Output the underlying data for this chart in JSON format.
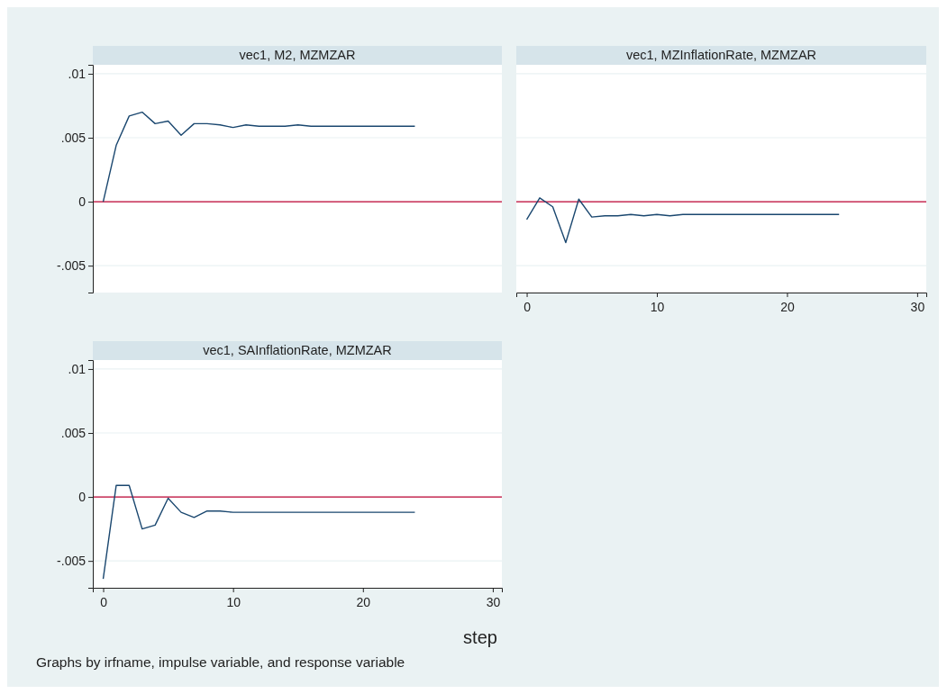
{
  "chart_data": [
    {
      "type": "line",
      "title": "vec1, M2, MZMZAR",
      "x": [
        0,
        1,
        2,
        3,
        4,
        5,
        6,
        7,
        8,
        9,
        10,
        11,
        12,
        13,
        14,
        15,
        16,
        17,
        18,
        19,
        20,
        21,
        22,
        23,
        24
      ],
      "series": [
        {
          "color": "#1a476f",
          "values": [
            0,
            0.0044,
            0.0067,
            0.007,
            0.0061,
            0.0063,
            0.0052,
            0.0061,
            0.0061,
            0.006,
            0.0058,
            0.006,
            0.0059,
            0.0059,
            0.0059,
            0.006,
            0.0059,
            0.0059,
            0.0059,
            0.0059,
            0.0059,
            0.0059,
            0.0059,
            0.0059,
            0.0059
          ]
        }
      ],
      "xlim": [
        -0.8,
        30.7
      ],
      "ylim": [
        -0.0071,
        0.0107
      ],
      "yticks": [
        {
          "value": -0.005,
          "label": "-.005"
        },
        0,
        {
          "value": 0.005,
          "label": ".005"
        },
        {
          "value": 0.01,
          "label": ".01"
        }
      ],
      "ref_lines": [
        {
          "axis": "y",
          "value": 0,
          "color": "#c10534"
        }
      ],
      "grid": "y",
      "tick_labels": "y"
    },
    {
      "type": "line",
      "title": "vec1, MZInflationRate, MZMZAR",
      "x": [
        0,
        1,
        2,
        3,
        4,
        5,
        6,
        7,
        8,
        9,
        10,
        11,
        12,
        13,
        14,
        15,
        16,
        17,
        18,
        19,
        20,
        21,
        22,
        23,
        24
      ],
      "series": [
        {
          "color": "#1a476f",
          "values": [
            -0.0014,
            0.0003,
            -0.0004,
            -0.0032,
            0.0002,
            -0.0012,
            -0.0011,
            -0.0011,
            -0.001,
            -0.0011,
            -0.001,
            -0.0011,
            -0.001,
            -0.001,
            -0.001,
            -0.001,
            -0.001,
            -0.001,
            -0.001,
            -0.001,
            -0.001,
            -0.001,
            -0.001,
            -0.001,
            -0.001
          ]
        }
      ],
      "xlim": [
        -0.8,
        30.7
      ],
      "xticks": [
        0,
        10,
        20,
        30
      ],
      "ylim": [
        -0.0071,
        0.0107
      ],
      "yticks": [
        -0.005,
        0,
        0.005,
        0.01
      ],
      "ref_lines": [
        {
          "axis": "y",
          "value": 0,
          "color": "#c10534"
        }
      ],
      "grid": "y",
      "tick_labels": "x"
    },
    {
      "type": "line",
      "title": "vec1, SAInflationRate, MZMZAR",
      "xlabel": "step",
      "annotations": [
        "Graphs by irfname, impulse variable, and response variable"
      ],
      "x": [
        0,
        1,
        2,
        3,
        4,
        5,
        6,
        7,
        8,
        9,
        10,
        11,
        12,
        13,
        14,
        15,
        16,
        17,
        18,
        19,
        20,
        21,
        22,
        23,
        24
      ],
      "series": [
        {
          "color": "#1a476f",
          "values": [
            -0.0064,
            0.0009,
            0.0009,
            -0.0025,
            -0.0022,
            -0.0001,
            -0.0012,
            -0.0016,
            -0.0011,
            -0.0011,
            -0.0012,
            -0.0012,
            -0.0012,
            -0.0012,
            -0.0012,
            -0.0012,
            -0.0012,
            -0.0012,
            -0.0012,
            -0.0012,
            -0.0012,
            -0.0012,
            -0.0012,
            -0.0012,
            -0.0012
          ]
        }
      ],
      "xlim": [
        -0.8,
        30.7
      ],
      "xticks": [
        0,
        10,
        20,
        30
      ],
      "ylim": [
        -0.0071,
        0.0107
      ],
      "yticks": [
        {
          "value": -0.005,
          "label": "-.005"
        },
        0,
        {
          "value": 0.005,
          "label": ".005"
        },
        {
          "value": 0.01,
          "label": ".01"
        }
      ],
      "ref_lines": [
        {
          "axis": "y",
          "value": 0,
          "color": "#c10534"
        }
      ],
      "grid": "y"
    }
  ]
}
